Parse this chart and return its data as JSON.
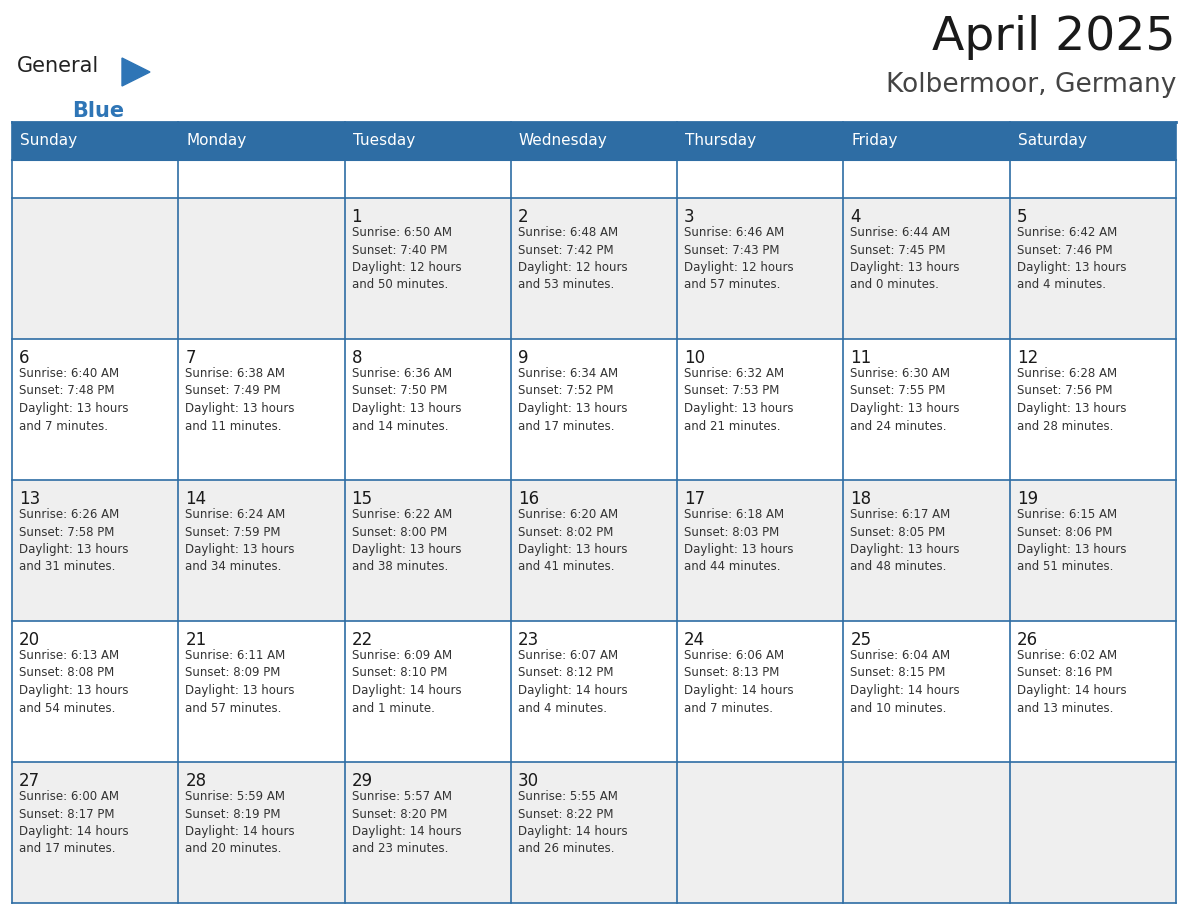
{
  "title": "April 2025",
  "subtitle": "Kolbermoor, Germany",
  "days_of_week": [
    "Sunday",
    "Monday",
    "Tuesday",
    "Wednesday",
    "Thursday",
    "Friday",
    "Saturday"
  ],
  "header_bg": "#2E6DA4",
  "header_text": "#FFFFFF",
  "cell_bg_odd": "#EFEFEF",
  "cell_bg_even": "#FFFFFF",
  "day_num_color": "#1a1a1a",
  "text_color": "#333333",
  "border_color": "#2E6DA4",
  "title_color": "#1a1a1a",
  "subtitle_color": "#444444",
  "general_text_color": "#1a1a1a",
  "blue_color": "#2E75B6",
  "weeks": [
    [
      {
        "day": null,
        "info": null
      },
      {
        "day": null,
        "info": null
      },
      {
        "day": 1,
        "info": "Sunrise: 6:50 AM\nSunset: 7:40 PM\nDaylight: 12 hours\nand 50 minutes."
      },
      {
        "day": 2,
        "info": "Sunrise: 6:48 AM\nSunset: 7:42 PM\nDaylight: 12 hours\nand 53 minutes."
      },
      {
        "day": 3,
        "info": "Sunrise: 6:46 AM\nSunset: 7:43 PM\nDaylight: 12 hours\nand 57 minutes."
      },
      {
        "day": 4,
        "info": "Sunrise: 6:44 AM\nSunset: 7:45 PM\nDaylight: 13 hours\nand 0 minutes."
      },
      {
        "day": 5,
        "info": "Sunrise: 6:42 AM\nSunset: 7:46 PM\nDaylight: 13 hours\nand 4 minutes."
      }
    ],
    [
      {
        "day": 6,
        "info": "Sunrise: 6:40 AM\nSunset: 7:48 PM\nDaylight: 13 hours\nand 7 minutes."
      },
      {
        "day": 7,
        "info": "Sunrise: 6:38 AM\nSunset: 7:49 PM\nDaylight: 13 hours\nand 11 minutes."
      },
      {
        "day": 8,
        "info": "Sunrise: 6:36 AM\nSunset: 7:50 PM\nDaylight: 13 hours\nand 14 minutes."
      },
      {
        "day": 9,
        "info": "Sunrise: 6:34 AM\nSunset: 7:52 PM\nDaylight: 13 hours\nand 17 minutes."
      },
      {
        "day": 10,
        "info": "Sunrise: 6:32 AM\nSunset: 7:53 PM\nDaylight: 13 hours\nand 21 minutes."
      },
      {
        "day": 11,
        "info": "Sunrise: 6:30 AM\nSunset: 7:55 PM\nDaylight: 13 hours\nand 24 minutes."
      },
      {
        "day": 12,
        "info": "Sunrise: 6:28 AM\nSunset: 7:56 PM\nDaylight: 13 hours\nand 28 minutes."
      }
    ],
    [
      {
        "day": 13,
        "info": "Sunrise: 6:26 AM\nSunset: 7:58 PM\nDaylight: 13 hours\nand 31 minutes."
      },
      {
        "day": 14,
        "info": "Sunrise: 6:24 AM\nSunset: 7:59 PM\nDaylight: 13 hours\nand 34 minutes."
      },
      {
        "day": 15,
        "info": "Sunrise: 6:22 AM\nSunset: 8:00 PM\nDaylight: 13 hours\nand 38 minutes."
      },
      {
        "day": 16,
        "info": "Sunrise: 6:20 AM\nSunset: 8:02 PM\nDaylight: 13 hours\nand 41 minutes."
      },
      {
        "day": 17,
        "info": "Sunrise: 6:18 AM\nSunset: 8:03 PM\nDaylight: 13 hours\nand 44 minutes."
      },
      {
        "day": 18,
        "info": "Sunrise: 6:17 AM\nSunset: 8:05 PM\nDaylight: 13 hours\nand 48 minutes."
      },
      {
        "day": 19,
        "info": "Sunrise: 6:15 AM\nSunset: 8:06 PM\nDaylight: 13 hours\nand 51 minutes."
      }
    ],
    [
      {
        "day": 20,
        "info": "Sunrise: 6:13 AM\nSunset: 8:08 PM\nDaylight: 13 hours\nand 54 minutes."
      },
      {
        "day": 21,
        "info": "Sunrise: 6:11 AM\nSunset: 8:09 PM\nDaylight: 13 hours\nand 57 minutes."
      },
      {
        "day": 22,
        "info": "Sunrise: 6:09 AM\nSunset: 8:10 PM\nDaylight: 14 hours\nand 1 minute."
      },
      {
        "day": 23,
        "info": "Sunrise: 6:07 AM\nSunset: 8:12 PM\nDaylight: 14 hours\nand 4 minutes."
      },
      {
        "day": 24,
        "info": "Sunrise: 6:06 AM\nSunset: 8:13 PM\nDaylight: 14 hours\nand 7 minutes."
      },
      {
        "day": 25,
        "info": "Sunrise: 6:04 AM\nSunset: 8:15 PM\nDaylight: 14 hours\nand 10 minutes."
      },
      {
        "day": 26,
        "info": "Sunrise: 6:02 AM\nSunset: 8:16 PM\nDaylight: 14 hours\nand 13 minutes."
      }
    ],
    [
      {
        "day": 27,
        "info": "Sunrise: 6:00 AM\nSunset: 8:17 PM\nDaylight: 14 hours\nand 17 minutes."
      },
      {
        "day": 28,
        "info": "Sunrise: 5:59 AM\nSunset: 8:19 PM\nDaylight: 14 hours\nand 20 minutes."
      },
      {
        "day": 29,
        "info": "Sunrise: 5:57 AM\nSunset: 8:20 PM\nDaylight: 14 hours\nand 23 minutes."
      },
      {
        "day": 30,
        "info": "Sunrise: 5:55 AM\nSunset: 8:22 PM\nDaylight: 14 hours\nand 26 minutes."
      },
      {
        "day": null,
        "info": null
      },
      {
        "day": null,
        "info": null
      },
      {
        "day": null,
        "info": null
      }
    ]
  ]
}
